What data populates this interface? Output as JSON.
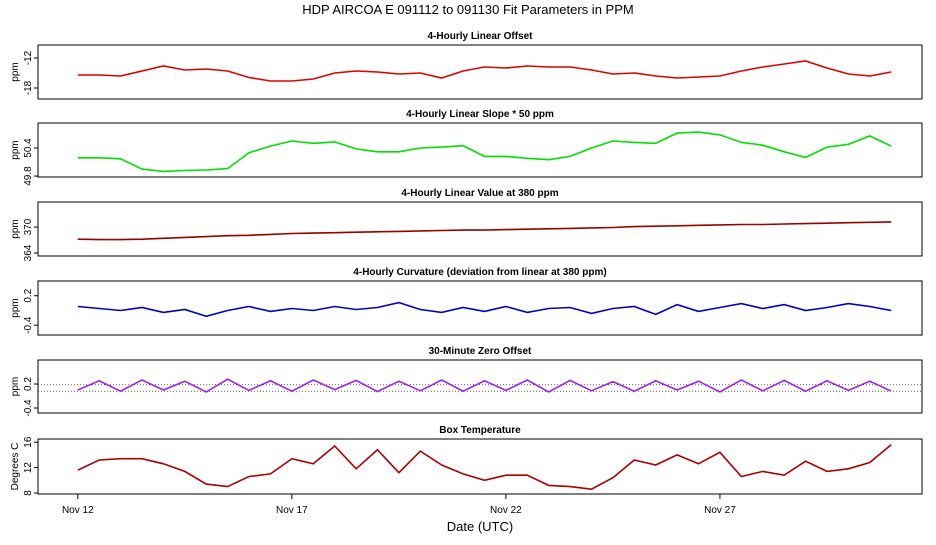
{
  "title": "HDP   AIRCOA E   091112 to 091130   Fit Parameters in PPM",
  "chart_data": [
    {
      "type": "line",
      "title": "4-Hourly Linear Offset",
      "ylabel": "ppm",
      "color": "#e00000",
      "xlim": [
        11.07,
        31.72
      ],
      "ylim": [
        -20.2,
        -9.4
      ],
      "yticks": [
        -18,
        -12
      ],
      "x": [
        12,
        12.5,
        13,
        13.5,
        14,
        14.5,
        15,
        15.5,
        16,
        16.5,
        17,
        17.5,
        18,
        18.5,
        19,
        19.5,
        20,
        20.5,
        21,
        21.5,
        22,
        22.5,
        23,
        23.5,
        24,
        24.5,
        25,
        25.5,
        26,
        26.5,
        27,
        27.5,
        28,
        28.5,
        29,
        29.5,
        30,
        30.5,
        31
      ],
      "values": [
        -15.4,
        -15.4,
        -15.6,
        -14.6,
        -13.6,
        -14.4,
        -14.2,
        -14.6,
        -15.9,
        -16.6,
        -16.6,
        -16.2,
        -15.0,
        -14.6,
        -14.8,
        -15.2,
        -15.0,
        -16.0,
        -14.6,
        -13.8,
        -14.0,
        -13.6,
        -13.8,
        -13.8,
        -14.4,
        -15.2,
        -15.0,
        -15.6,
        -16.0,
        -15.8,
        -15.6,
        -14.6,
        -13.8,
        -13.2,
        -12.6,
        -14.0,
        -15.2,
        -15.6,
        -14.8
      ]
    },
    {
      "type": "line",
      "title": "4-Hourly Linear Slope * 50 ppm",
      "ylabel": "ppm",
      "color": "#00e000",
      "xlim": [
        11.07,
        31.72
      ],
      "ylim": [
        49.78,
        50.935
      ],
      "yticks": [
        49.8,
        50.4
      ],
      "x": [
        12,
        12.5,
        13,
        13.5,
        14,
        14.5,
        15,
        15.5,
        16,
        16.5,
        17,
        17.5,
        18,
        18.5,
        19,
        19.5,
        20,
        20.5,
        21,
        21.5,
        22,
        22.5,
        23,
        23.5,
        24,
        24.5,
        25,
        25.5,
        26,
        26.5,
        27,
        27.5,
        28,
        28.5,
        29,
        29.5,
        30,
        30.5,
        31
      ],
      "values": [
        50.19,
        50.19,
        50.17,
        49.95,
        49.9,
        49.92,
        49.93,
        49.96,
        50.3,
        50.44,
        50.55,
        50.5,
        50.53,
        50.38,
        50.32,
        50.32,
        50.4,
        50.42,
        50.45,
        50.22,
        50.22,
        50.18,
        50.15,
        50.22,
        50.4,
        50.55,
        50.52,
        50.5,
        50.72,
        50.74,
        50.68,
        50.52,
        50.46,
        50.32,
        50.2,
        50.42,
        50.48,
        50.66,
        50.44
      ]
    },
    {
      "type": "line",
      "title": "4-Hourly Linear Value at 380 ppm",
      "ylabel": "ppm",
      "color": "#990000",
      "xlim": [
        11.07,
        31.72
      ],
      "ylim": [
        363.3,
        375.8
      ],
      "yticks": [
        364,
        370
      ],
      "x": [
        12,
        12.5,
        13,
        13.5,
        14,
        14.5,
        15,
        15.5,
        16,
        16.5,
        17,
        17.5,
        18,
        18.5,
        19,
        19.5,
        20,
        20.5,
        21,
        21.5,
        22,
        22.5,
        23,
        23.5,
        24,
        24.5,
        25,
        25.5,
        26,
        26.5,
        27,
        27.5,
        28,
        28.5,
        29,
        29.5,
        30,
        30.5,
        31
      ],
      "values": [
        367.2,
        367.1,
        367.1,
        367.2,
        367.4,
        367.6,
        367.8,
        368.0,
        368.1,
        368.3,
        368.5,
        368.6,
        368.7,
        368.8,
        368.9,
        369.0,
        369.1,
        369.2,
        369.3,
        369.3,
        369.4,
        369.5,
        369.6,
        369.7,
        369.8,
        369.9,
        370.1,
        370.2,
        370.3,
        370.4,
        370.5,
        370.6,
        370.6,
        370.7,
        370.8,
        370.9,
        371.0,
        371.1,
        371.2
      ]
    },
    {
      "type": "line",
      "title": "4-Hourly Curvature (deviation from linear at 380 ppm)",
      "ylabel": "ppm",
      "color": "#0000cc",
      "xlim": [
        11.07,
        31.72
      ],
      "ylim": [
        -0.6,
        0.5
      ],
      "yticks": [
        -0.4,
        0.2
      ],
      "x": [
        12,
        12.5,
        13,
        13.5,
        14,
        14.5,
        15,
        15.5,
        16,
        16.5,
        17,
        17.5,
        18,
        18.5,
        19,
        19.5,
        20,
        20.5,
        21,
        21.5,
        22,
        22.5,
        23,
        23.5,
        24,
        24.5,
        25,
        25.5,
        26,
        26.5,
        27,
        27.5,
        28,
        28.5,
        29,
        29.5,
        30,
        30.5,
        31
      ],
      "values": [
        -0.02,
        -0.06,
        -0.1,
        -0.04,
        -0.14,
        -0.08,
        -0.22,
        -0.1,
        -0.02,
        -0.12,
        -0.06,
        -0.1,
        -0.02,
        -0.08,
        -0.04,
        0.06,
        -0.08,
        -0.14,
        -0.04,
        -0.12,
        -0.02,
        -0.14,
        -0.06,
        -0.04,
        -0.16,
        -0.06,
        -0.02,
        -0.18,
        0.02,
        -0.12,
        -0.04,
        0.04,
        -0.06,
        0.02,
        -0.1,
        -0.04,
        0.04,
        -0.02,
        -0.1
      ]
    },
    {
      "type": "line",
      "title": "30-Minute Zero Offset",
      "ylabel": "ppm",
      "color": "#a020f0",
      "xlim": [
        11.07,
        31.72
      ],
      "ylim": [
        -0.525,
        0.8
      ],
      "yticks": [
        -0.4,
        0.2
      ],
      "reference_lines": [
        0.18,
        0.02
      ],
      "x": [
        12,
        12.5,
        13,
        13.5,
        14,
        14.5,
        15,
        15.5,
        16,
        16.5,
        17,
        17.5,
        18,
        18.5,
        19,
        19.5,
        20,
        20.5,
        21,
        21.5,
        22,
        22.5,
        23,
        23.5,
        24,
        24.5,
        25,
        25.5,
        26,
        26.5,
        27,
        27.5,
        28,
        28.5,
        29,
        29.5,
        30,
        30.5,
        31
      ],
      "values": [
        0.05,
        0.28,
        0.02,
        0.3,
        0.05,
        0.27,
        0.0,
        0.32,
        0.04,
        0.28,
        0.02,
        0.3,
        0.06,
        0.29,
        0.01,
        0.27,
        0.03,
        0.3,
        0.02,
        0.28,
        0.04,
        0.3,
        0.0,
        0.29,
        0.03,
        0.26,
        0.02,
        0.28,
        0.05,
        0.27,
        0.0,
        0.3,
        0.03,
        0.29,
        0.02,
        0.28,
        0.04,
        0.27,
        0.02
      ]
    },
    {
      "type": "line",
      "title": "Box Temperature",
      "ylabel": "Degrees C",
      "color": "#aa0000",
      "xlabel": "Date (UTC)",
      "xlim": [
        11.07,
        31.72
      ],
      "ylim": [
        7.84,
        16.5
      ],
      "yticks": [
        8,
        12,
        16
      ],
      "xticks": [
        {
          "value": 12,
          "label": "Nov 12"
        },
        {
          "value": 17,
          "label": "Nov 17"
        },
        {
          "value": 22,
          "label": "Nov 22"
        },
        {
          "value": 27,
          "label": "Nov 27"
        }
      ],
      "x": [
        12,
        12.5,
        13,
        13.5,
        14,
        14.5,
        15,
        15.5,
        16,
        16.5,
        17,
        17.5,
        18,
        18.5,
        19,
        19.5,
        20,
        20.5,
        21,
        21.5,
        22,
        22.5,
        23,
        23.5,
        24,
        24.5,
        25,
        25.5,
        26,
        26.5,
        27,
        27.5,
        28,
        28.5,
        29,
        29.5,
        30,
        30.5,
        31
      ],
      "values": [
        11.6,
        13.2,
        13.4,
        13.4,
        12.6,
        11.4,
        9.4,
        9.0,
        10.6,
        11.0,
        13.4,
        12.6,
        15.4,
        11.8,
        14.8,
        11.2,
        14.6,
        12.4,
        11.0,
        10.0,
        10.8,
        10.8,
        9.2,
        9.0,
        8.6,
        10.4,
        13.2,
        12.4,
        14.0,
        12.6,
        14.4,
        10.6,
        11.4,
        10.8,
        13.0,
        11.4,
        11.8,
        12.8,
        15.6
      ]
    }
  ]
}
